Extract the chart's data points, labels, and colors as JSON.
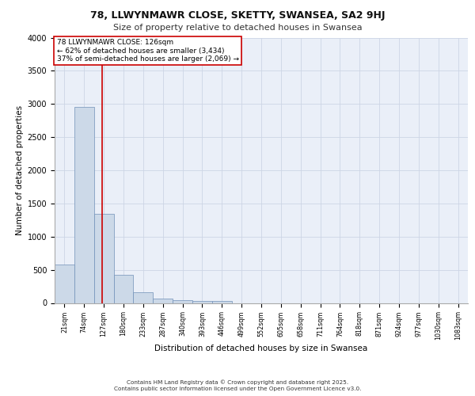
{
  "title1": "78, LLWYNMAWR CLOSE, SKETTY, SWANSEA, SA2 9HJ",
  "title2": "Size of property relative to detached houses in Swansea",
  "xlabel": "Distribution of detached houses by size in Swansea",
  "ylabel": "Number of detached properties",
  "bar_color": "#ccd9e8",
  "bar_edge_color": "#7090b8",
  "grid_color": "#cdd5e5",
  "bg_color": "#eaeff8",
  "vline_color": "#cc0000",
  "annot_line1": "78 LLWYNMAWR CLOSE: 126sqm",
  "annot_line2": "← 62% of detached houses are smaller (3,434)",
  "annot_line3": "37% of semi-detached houses are larger (2,069) →",
  "categories": [
    "21sqm",
    "74sqm",
    "127sqm",
    "180sqm",
    "233sqm",
    "287sqm",
    "340sqm",
    "393sqm",
    "446sqm",
    "499sqm",
    "552sqm",
    "605sqm",
    "658sqm",
    "711sqm",
    "764sqm",
    "818sqm",
    "871sqm",
    "924sqm",
    "977sqm",
    "1030sqm",
    "1083sqm"
  ],
  "values": [
    580,
    2960,
    1340,
    420,
    160,
    70,
    40,
    30,
    30,
    0,
    0,
    0,
    0,
    0,
    0,
    0,
    0,
    0,
    0,
    0,
    0
  ],
  "ylim": [
    0,
    4000
  ],
  "yticks": [
    0,
    500,
    1000,
    1500,
    2000,
    2500,
    3000,
    3500,
    4000
  ],
  "vline_pos": 1.93,
  "footer1": "Contains HM Land Registry data © Crown copyright and database right 2025.",
  "footer2": "Contains public sector information licensed under the Open Government Licence v3.0."
}
